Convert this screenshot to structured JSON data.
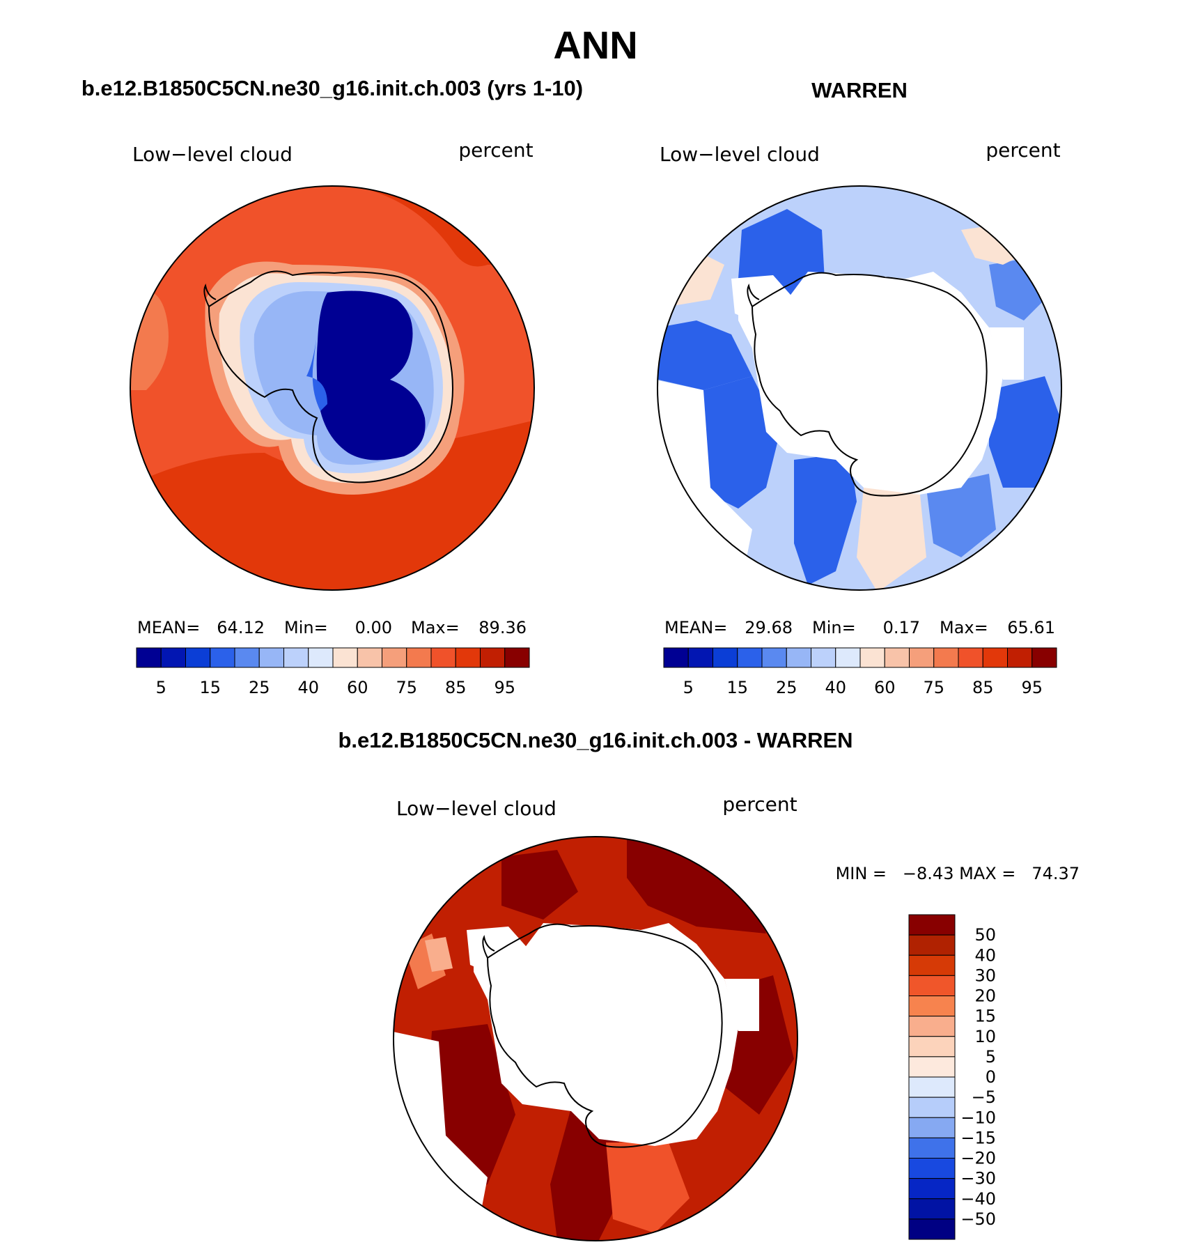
{
  "main_title": "ANN",
  "panels": {
    "model": {
      "title": "b.e12.B1850C5CN.ne30_g16.init.ch.003 (yrs 1-10)",
      "left_label": "Low−level cloud",
      "right_label": "percent",
      "stats": {
        "mean_label": "MEAN=",
        "mean": "64.12",
        "min_label": "Min=",
        "min": "0.00",
        "max_label": "Max=",
        "max": "89.36"
      }
    },
    "obs": {
      "title": "WARREN",
      "left_label": "Low−level cloud",
      "right_label": "percent",
      "stats": {
        "mean_label": "MEAN=",
        "mean": "29.68",
        "min_label": "Min=",
        "min": "0.17",
        "max_label": "Max=",
        "max": "65.61"
      }
    },
    "diff": {
      "title": "b.e12.B1850C5CN.ne30_g16.init.ch.003 - WARREN",
      "left_label": "Low−level cloud",
      "right_label": "percent",
      "stats_text": "MIN =   −8.43 MAX =   74.37"
    }
  },
  "colorbars": {
    "horizontal_colors": [
      "#000093",
      "#0216b2",
      "#0b3ed6",
      "#2b61ea",
      "#5a89f0",
      "#97b6f6",
      "#bcd1fb",
      "#dde9fc",
      "#fbe3d3",
      "#f8c3a9",
      "#f59f7b",
      "#f37a4e",
      "#f0522a",
      "#e2380a",
      "#c11f02",
      "#880000"
    ],
    "horizontal_labels": [
      "5",
      "15",
      "25",
      "40",
      "60",
      "75",
      "85",
      "95"
    ],
    "vertical_colors": [
      "#880000",
      "#b02201",
      "#d63a06",
      "#f0562a",
      "#f7834e",
      "#f9ae8d",
      "#fcd3bb",
      "#fde9dd",
      "#dde9fc",
      "#b6cdfa",
      "#86a9f2",
      "#3f72ea",
      "#1849e0",
      "#0626c5",
      "#0113a4",
      "#000083"
    ],
    "vertical_labels": [
      "50",
      "40",
      "30",
      "20",
      "15",
      "10",
      "5",
      "0",
      "−5",
      "−10",
      "−15",
      "−20",
      "−30",
      "−40",
      "−50"
    ]
  },
  "chart_data": [
    {
      "type": "heatmap",
      "title": "b.e12.B1850C5CN.ne30_g16.init.ch.003 (yrs 1-10)",
      "variable": "Low-level cloud",
      "units": "percent",
      "projection": "south polar stereographic",
      "contour_levels": [
        5,
        10,
        15,
        20,
        25,
        30,
        40,
        50,
        60,
        65,
        75,
        80,
        85,
        90,
        95
      ],
      "mean": 64.12,
      "min": 0.0,
      "max": 89.36
    },
    {
      "type": "heatmap",
      "title": "WARREN",
      "variable": "Low-level cloud",
      "units": "percent",
      "projection": "south polar stereographic",
      "contour_levels": [
        5,
        10,
        15,
        20,
        25,
        30,
        40,
        50,
        60,
        65,
        75,
        80,
        85,
        90,
        95
      ],
      "mean": 29.68,
      "min": 0.17,
      "max": 65.61
    },
    {
      "type": "heatmap",
      "title": "b.e12.B1850C5CN.ne30_g16.init.ch.003 - WARREN",
      "variable": "Low-level cloud",
      "units": "percent",
      "projection": "south polar stereographic",
      "contour_levels": [
        -50,
        -40,
        -30,
        -20,
        -15,
        -10,
        -5,
        0,
        5,
        10,
        15,
        20,
        30,
        40,
        50
      ],
      "min": -8.43,
      "max": 74.37
    }
  ]
}
